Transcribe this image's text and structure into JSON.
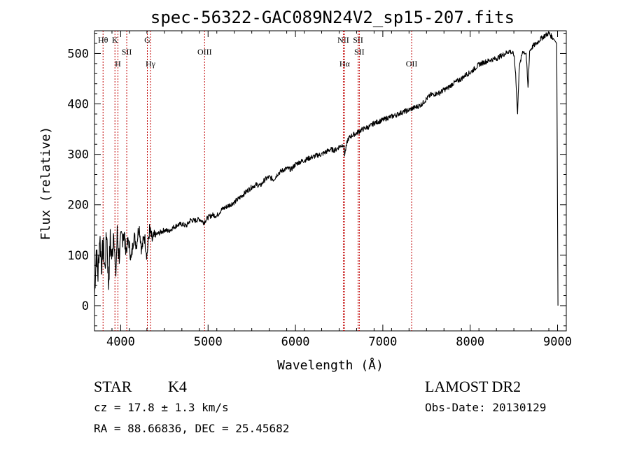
{
  "chart_data": {
    "type": "line",
    "title": "spec-56322-GAC089N24V2_sp15-207.fits",
    "xlabel": "Wavelength (Å)",
    "ylabel": "Flux (relative)",
    "xlim": [
      3700,
      9100
    ],
    "ylim": [
      -50,
      545
    ],
    "x_ticks": [
      4000,
      5000,
      6000,
      7000,
      8000,
      9000
    ],
    "x_tick_labels": [
      "4000",
      "5000",
      "6000",
      "7000",
      "8000",
      "9000"
    ],
    "y_ticks": [
      0,
      100,
      200,
      300,
      400,
      500
    ],
    "y_tick_labels": [
      "0",
      "100",
      "200",
      "300",
      "400",
      "500"
    ],
    "grid": false,
    "series": [
      {
        "name": "flux",
        "x": [
          3700,
          3720,
          3740,
          3760,
          3780,
          3800,
          3820,
          3840,
          3860,
          3880,
          3900,
          3920,
          3940,
          3960,
          3980,
          4000,
          4030,
          4060,
          4090,
          4120,
          4150,
          4180,
          4210,
          4240,
          4270,
          4300,
          4330,
          4360,
          4400,
          4450,
          4500,
          4550,
          4600,
          4650,
          4700,
          4750,
          4800,
          4850,
          4900,
          4950,
          5000,
          5050,
          5100,
          5150,
          5200,
          5250,
          5300,
          5350,
          5400,
          5450,
          5500,
          5550,
          5600,
          5650,
          5700,
          5750,
          5800,
          5850,
          5900,
          5950,
          6000,
          6050,
          6100,
          6150,
          6200,
          6250,
          6300,
          6350,
          6400,
          6450,
          6500,
          6550,
          6563,
          6600,
          6650,
          6700,
          6750,
          6800,
          6850,
          6900,
          6950,
          7000,
          7050,
          7100,
          7150,
          7200,
          7250,
          7300,
          7350,
          7400,
          7450,
          7500,
          7550,
          7600,
          7650,
          7700,
          7750,
          7800,
          7850,
          7900,
          7950,
          8000,
          8050,
          8100,
          8150,
          8200,
          8250,
          8300,
          8350,
          8400,
          8450,
          8500,
          8520,
          8542,
          8560,
          8600,
          8640,
          8662,
          8680,
          8720,
          8760,
          8800,
          8850,
          8900,
          8950,
          8990,
          9000,
          9005
        ],
        "y": [
          20,
          110,
          60,
          140,
          80,
          120,
          70,
          150,
          40,
          130,
          90,
          160,
          50,
          140,
          100,
          120,
          150,
          110,
          130,
          90,
          140,
          120,
          160,
          110,
          140,
          100,
          150,
          130,
          140,
          145,
          150,
          148,
          155,
          160,
          162,
          158,
          170,
          168,
          172,
          165,
          175,
          180,
          178,
          190,
          195,
          200,
          205,
          212,
          220,
          228,
          235,
          240,
          238,
          250,
          255,
          250,
          262,
          268,
          272,
          270,
          280,
          285,
          288,
          292,
          295,
          298,
          300,
          305,
          310,
          308,
          315,
          320,
          300,
          330,
          338,
          342,
          348,
          352,
          355,
          362,
          365,
          368,
          372,
          375,
          378,
          382,
          385,
          388,
          392,
          395,
          400,
          410,
          418,
          420,
          422,
          428,
          432,
          440,
          445,
          450,
          458,
          462,
          470,
          478,
          482,
          485,
          488,
          490,
          495,
          500,
          505,
          498,
          460,
          380,
          470,
          505,
          500,
          430,
          505,
          515,
          520,
          528,
          535,
          540,
          530,
          520,
          180,
          0
        ]
      }
    ],
    "line_markers": [
      {
        "label": "Hθ",
        "x": 3798,
        "row": "top"
      },
      {
        "label": "K",
        "x": 3934,
        "row": "top"
      },
      {
        "label": "H",
        "x": 3968,
        "row": "bottom"
      },
      {
        "label": "SII",
        "x": 4069,
        "row": "mid"
      },
      {
        "label": "G",
        "x": 4305,
        "row": "top"
      },
      {
        "label": "Hγ",
        "x": 4341,
        "row": "bottom"
      },
      {
        "label": "OIII",
        "x": 4960,
        "row": "mid"
      },
      {
        "label": "NII",
        "x": 6548,
        "row": "top"
      },
      {
        "label": "Hα",
        "x": 6563,
        "row": "bottom"
      },
      {
        "label": "SII",
        "x": 6717,
        "row": "top"
      },
      {
        "label": "SII",
        "x": 6731,
        "row": "mid"
      },
      {
        "label": "OII",
        "x": 7330,
        "row": "bottom"
      }
    ],
    "line_color": "#000000",
    "marker_color": "#c00000"
  },
  "info": {
    "class_text": "STAR",
    "subclass_text": "K4",
    "cz_text": "cz = 17.8 ± 1.3 km/s",
    "radec_text": "RA =  88.66836, DEC =  25.45682",
    "survey_text": "LAMOST DR2",
    "obsdate_text": "Obs-Date: 20130129"
  }
}
